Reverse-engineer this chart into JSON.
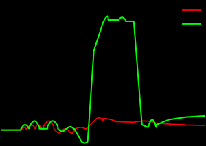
{
  "background_color": "#000000",
  "line1_color": "#ff0000",
  "line2_color": "#00ff00",
  "figsize": [
    3.0,
    2.13
  ],
  "dpi": 100,
  "ymin": -0.12,
  "ymax": 1.0
}
